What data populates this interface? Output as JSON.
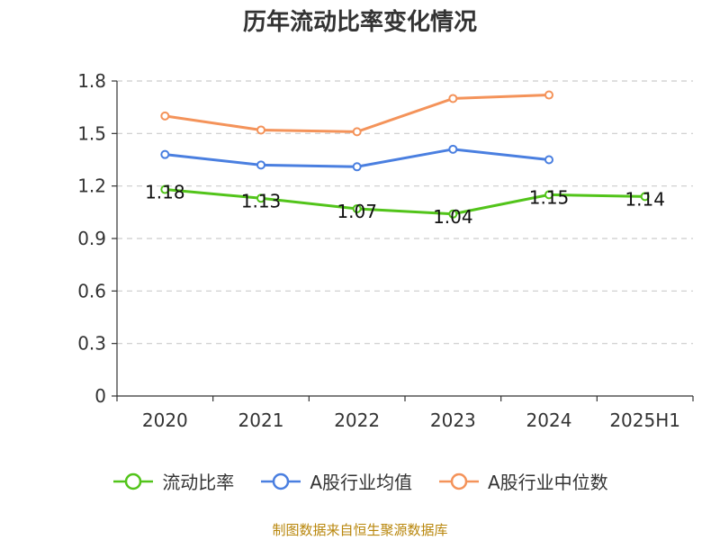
{
  "chart_data": {
    "type": "line",
    "title": "历年流动比率变化情况",
    "categories": [
      "2020",
      "2021",
      "2022",
      "2023",
      "2024",
      "2025H1"
    ],
    "ylim": [
      0,
      1.8
    ],
    "yticks": [
      "0",
      "0.3",
      "0.6",
      "0.9",
      "1.2",
      "1.5",
      "1.8"
    ],
    "grid": true,
    "legend_position": "bottom",
    "series": [
      {
        "name": "流动比率",
        "color": "#52c41a",
        "values": [
          1.18,
          1.13,
          1.07,
          1.04,
          1.15,
          1.14
        ],
        "labels": [
          "1.18",
          "1.13",
          "1.07",
          "1.04",
          "1.15",
          "1.14"
        ]
      },
      {
        "name": "A股行业均值",
        "color": "#4a7fe0",
        "values": [
          1.38,
          1.32,
          1.31,
          1.41,
          1.35,
          null
        ]
      },
      {
        "name": "A股行业中位数",
        "color": "#f4935a",
        "values": [
          1.6,
          1.52,
          1.51,
          1.7,
          1.72,
          null
        ]
      }
    ]
  },
  "source": "制图数据来自恒生聚源数据库"
}
